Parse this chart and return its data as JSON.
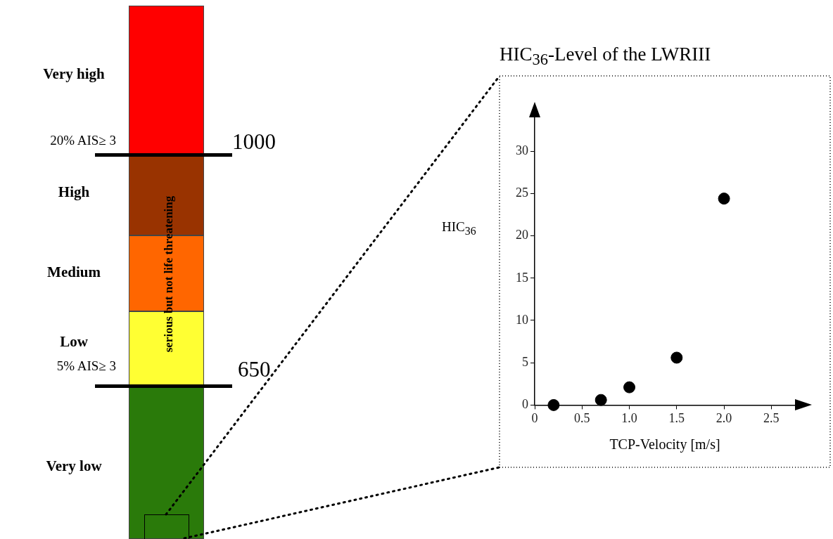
{
  "chart_data": [
    {
      "type": "other",
      "categories": [
        "Very high",
        "High",
        "Medium",
        "Low",
        "Very low"
      ],
      "colors": [
        "#ff0000",
        "#993300",
        "#ff6600",
        "#ffff33",
        "#2a7a0a"
      ],
      "annotations": [
        "20% AIS≥ 3",
        "1000",
        "5% AIS≥ 3",
        "650",
        "serious but not life threatening"
      ]
    },
    {
      "type": "scatter",
      "title": "HIC$_{36}$-Level of the LWRIII",
      "xlabel": "TCP-Velocity [m/s]",
      "ylabel": "HIC$_{36}$",
      "x": [
        0.2,
        0.7,
        1.0,
        1.5,
        2.0
      ],
      "series": [
        {
          "color": "#000000",
          "values": [
            0,
            0.6,
            2.1,
            5.6,
            24.4
          ]
        }
      ],
      "xlim": [
        0,
        2.75
      ],
      "xticks": [
        {
          "value": 0,
          "label": "0"
        },
        0.5,
        {
          "value": 1,
          "label": "1.0"
        },
        1.5,
        {
          "value": 2,
          "label": "2.0"
        },
        2.5
      ],
      "ylim": [
        0,
        34
      ],
      "yticks": [
        0,
        5,
        10,
        15,
        20,
        25,
        30
      ],
      "grid": false,
      "legend": false,
      "marker": "circle"
    }
  ]
}
